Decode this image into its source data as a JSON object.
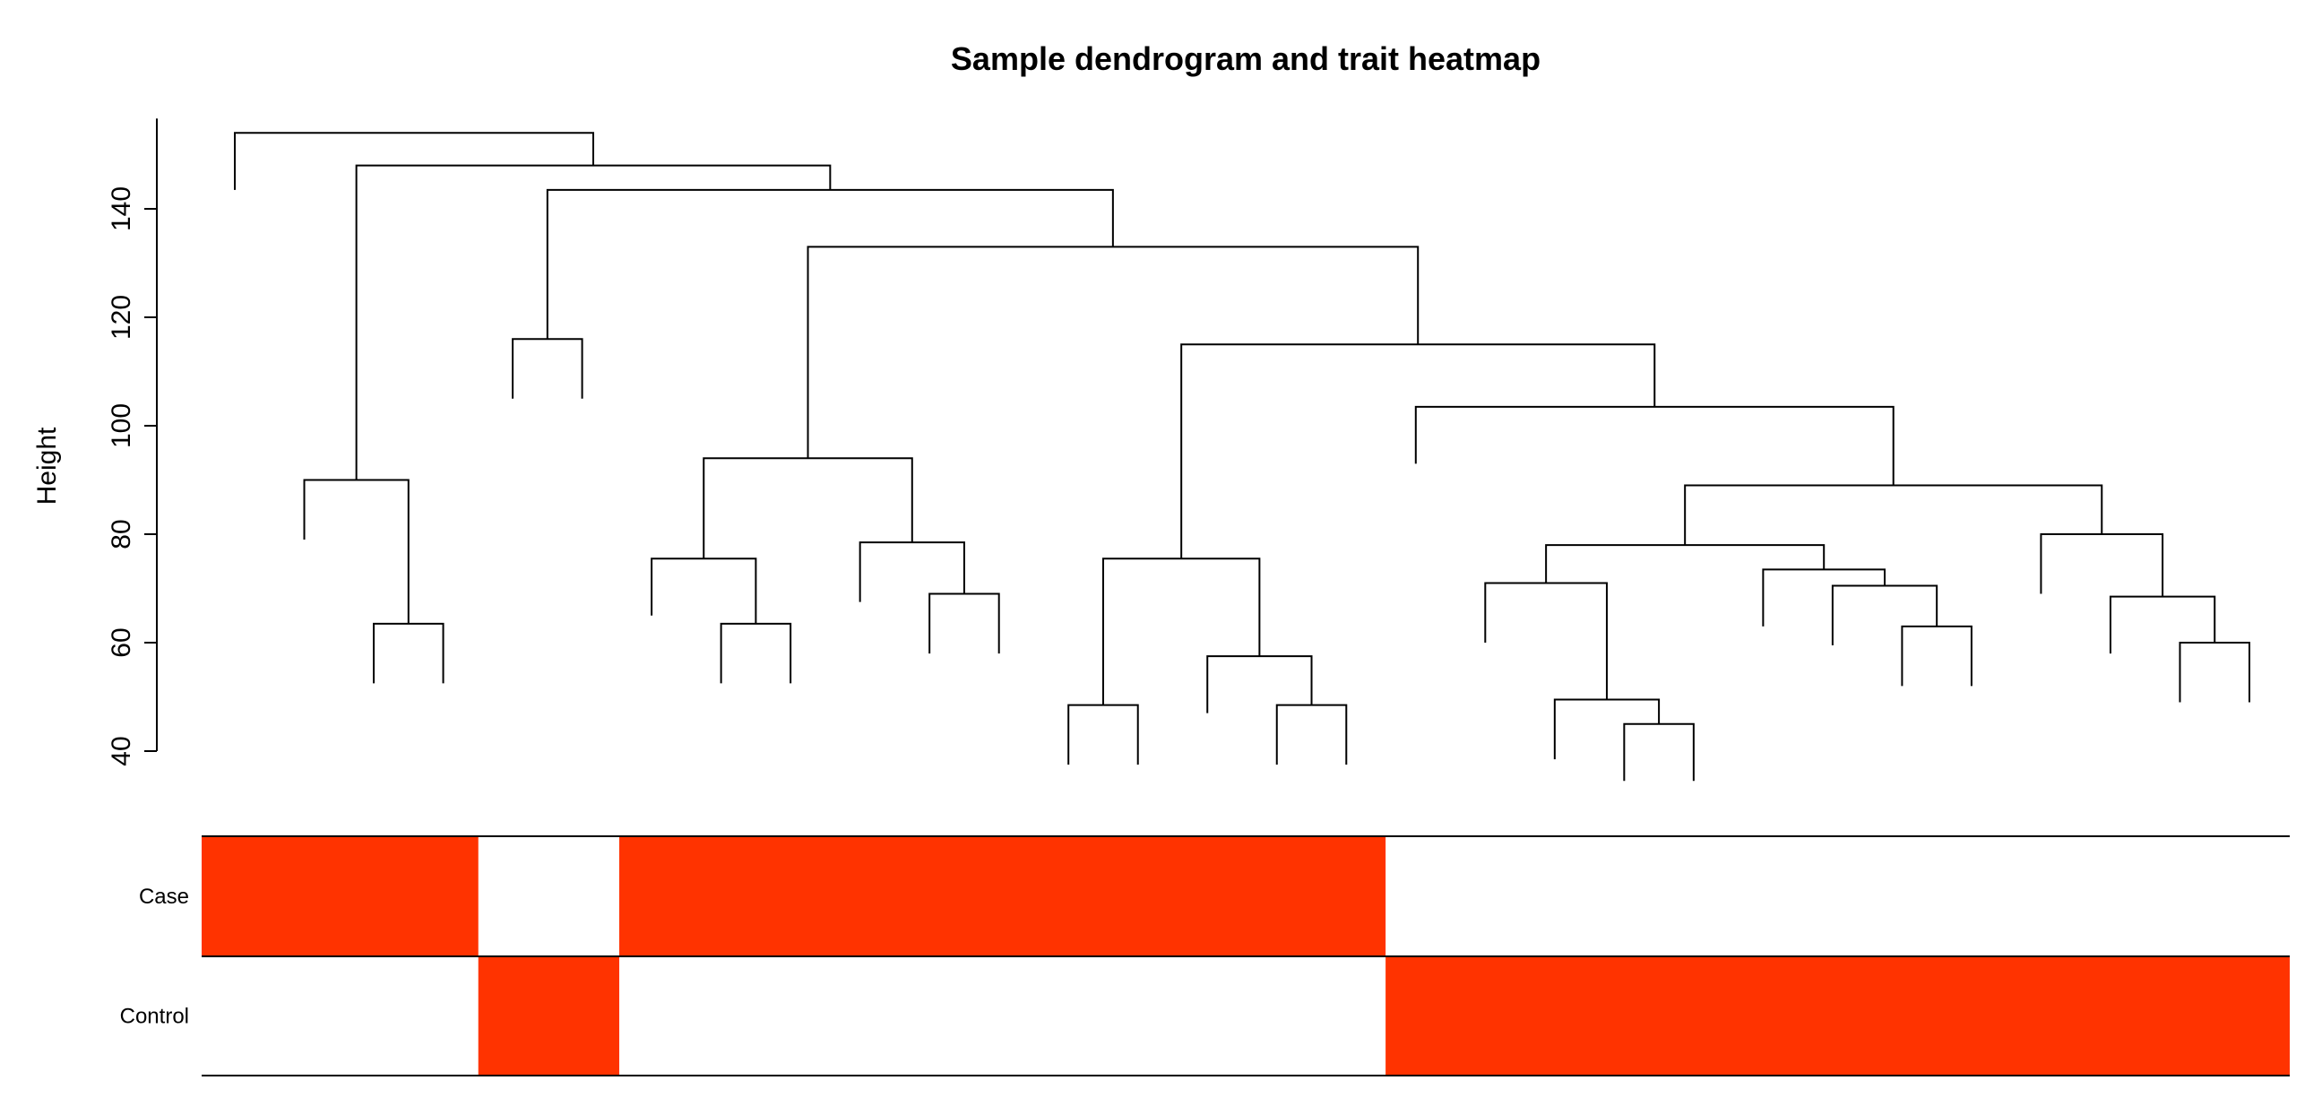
{
  "chart_data": {
    "type": "dendrogram-heatmap",
    "title": "Sample dendrogram and trait heatmap",
    "ylabel": "Height",
    "y_ticks": [
      40,
      60,
      80,
      100,
      120,
      140
    ],
    "ylim": [
      40,
      155
    ],
    "leaf_count": 30,
    "leaf_heights": [
      143.5,
      79,
      52.5,
      52.5,
      105,
      105,
      65,
      52.5,
      52.5,
      67.5,
      58,
      58,
      37.5,
      37.5,
      47,
      37.5,
      37.5,
      93,
      60,
      38.5,
      34.5,
      34.5,
      63,
      59.5,
      52,
      52,
      69,
      58,
      49,
      49
    ],
    "merges": [
      [
        2,
        3,
        63.5
      ],
      [
        1,
        "m0",
        90
      ],
      [
        4,
        5,
        116
      ],
      [
        7,
        8,
        63.5
      ],
      [
        6,
        "m3",
        75.5
      ],
      [
        10,
        11,
        69
      ],
      [
        9,
        "m5",
        78.5
      ],
      [
        "m4",
        "m6",
        94
      ],
      [
        12,
        13,
        48.5
      ],
      [
        15,
        16,
        48.5
      ],
      [
        14,
        "m9",
        57.5
      ],
      [
        "m8",
        "m10",
        75.5
      ],
      [
        20,
        21,
        45
      ],
      [
        19,
        "m12",
        49.5
      ],
      [
        18,
        "m13",
        71
      ],
      [
        24,
        25,
        63
      ],
      [
        23,
        "m15",
        70.5
      ],
      [
        22,
        "m16",
        73.5
      ],
      [
        "m14",
        "m17",
        78
      ],
      [
        28,
        29,
        60
      ],
      [
        27,
        "m19",
        68.5
      ],
      [
        26,
        "m20",
        80
      ],
      [
        "m18",
        "m21",
        89
      ],
      [
        17,
        "m22",
        103.5
      ],
      [
        "m11",
        "m23",
        115
      ],
      [
        "m7",
        "m24",
        133
      ],
      [
        "m2",
        "m25",
        143.5
      ],
      [
        "m1",
        "m26",
        148
      ],
      [
        0,
        "m27",
        154
      ]
    ],
    "traits": [
      {
        "name": "Case",
        "color": "#ff3300",
        "segments": [
          [
            0,
            0.1325,
            1
          ],
          [
            0.1325,
            0.2,
            0
          ],
          [
            0.2,
            0.567,
            1
          ],
          [
            0.567,
            1,
            0
          ]
        ]
      },
      {
        "name": "Control",
        "color": "#ff3300",
        "segments": [
          [
            0,
            0.1325,
            0
          ],
          [
            0.1325,
            0.2,
            1
          ],
          [
            0.2,
            0.567,
            0
          ],
          [
            0.567,
            1,
            1
          ]
        ]
      }
    ]
  }
}
